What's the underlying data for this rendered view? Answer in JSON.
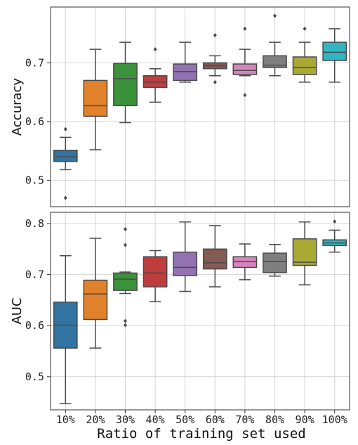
{
  "chart_data": {
    "type": "box",
    "categories": [
      "10%",
      "20%",
      "30%",
      "40%",
      "50%",
      "60%",
      "70%",
      "80%",
      "90%",
      "100%"
    ],
    "colors": [
      "#3274a1",
      "#e1812c",
      "#3a923a",
      "#c03d3e",
      "#9372b2",
      "#845b53",
      "#d684bd",
      "#7f7f7f",
      "#a9aa35",
      "#2eb7c2"
    ],
    "xlabel": "Ratio of training set used",
    "grid": true,
    "panels": [
      {
        "ylabel": "Accuracy",
        "ylim": [
          0.455,
          0.795
        ],
        "yticks": [
          0.5,
          0.6,
          0.7
        ],
        "ytick_labels": [
          "0.5",
          "0.6",
          "0.7"
        ],
        "boxes": [
          {
            "category": "10%",
            "whisker_low": 0.518,
            "q1": 0.532,
            "median": 0.54,
            "q3": 0.551,
            "whisker_high": 0.573,
            "outliers": [
              0.47,
              0.587
            ]
          },
          {
            "category": "20%",
            "whisker_low": 0.552,
            "q1": 0.609,
            "median": 0.627,
            "q3": 0.67,
            "whisker_high": 0.723,
            "outliers": []
          },
          {
            "category": "30%",
            "whisker_low": 0.598,
            "q1": 0.627,
            "median": 0.673,
            "q3": 0.699,
            "whisker_high": 0.735,
            "outliers": []
          },
          {
            "category": "40%",
            "whisker_low": 0.633,
            "q1": 0.658,
            "median": 0.667,
            "q3": 0.678,
            "whisker_high": 0.69,
            "outliers": [
              0.723
            ]
          },
          {
            "category": "50%",
            "whisker_low": 0.667,
            "q1": 0.67,
            "median": 0.685,
            "q3": 0.698,
            "whisker_high": 0.735,
            "outliers": []
          },
          {
            "category": "60%",
            "whisker_low": 0.678,
            "q1": 0.69,
            "median": 0.695,
            "q3": 0.7,
            "whisker_high": 0.712,
            "outliers": [
              0.667,
              0.747
            ]
          },
          {
            "category": "70%",
            "whisker_low": 0.678,
            "q1": 0.68,
            "median": 0.687,
            "q3": 0.698,
            "whisker_high": 0.723,
            "outliers": [
              0.645,
              0.758
            ]
          },
          {
            "category": "80%",
            "whisker_low": 0.678,
            "q1": 0.692,
            "median": 0.696,
            "q3": 0.712,
            "whisker_high": 0.735,
            "outliers": [
              0.78
            ]
          },
          {
            "category": "90%",
            "whisker_low": 0.667,
            "q1": 0.68,
            "median": 0.692,
            "q3": 0.71,
            "whisker_high": 0.735,
            "outliers": [
              0.758
            ]
          },
          {
            "category": "100%",
            "whisker_low": 0.667,
            "q1": 0.704,
            "median": 0.718,
            "q3": 0.735,
            "whisker_high": 0.758,
            "outliers": []
          }
        ]
      },
      {
        "ylabel": "AUC",
        "ylim": [
          0.435,
          0.822
        ],
        "yticks": [
          0.5,
          0.6,
          0.7,
          0.8
        ],
        "ytick_labels": [
          "0.5",
          "0.6",
          "0.7",
          "0.8"
        ],
        "boxes": [
          {
            "category": "10%",
            "whisker_low": 0.447,
            "q1": 0.556,
            "median": 0.601,
            "q3": 0.646,
            "whisker_high": 0.737,
            "outliers": []
          },
          {
            "category": "20%",
            "whisker_low": 0.556,
            "q1": 0.612,
            "median": 0.662,
            "q3": 0.689,
            "whisker_high": 0.771,
            "outliers": []
          },
          {
            "category": "30%",
            "whisker_low": 0.663,
            "q1": 0.669,
            "median": 0.691,
            "q3": 0.703,
            "whisker_high": 0.705,
            "outliers": [
              0.601,
              0.609,
              0.758,
              0.789
            ]
          },
          {
            "category": "40%",
            "whisker_low": 0.647,
            "q1": 0.676,
            "median": 0.703,
            "q3": 0.735,
            "whisker_high": 0.747,
            "outliers": []
          },
          {
            "category": "50%",
            "whisker_low": 0.667,
            "q1": 0.698,
            "median": 0.714,
            "q3": 0.744,
            "whisker_high": 0.803,
            "outliers": []
          },
          {
            "category": "60%",
            "whisker_low": 0.676,
            "q1": 0.711,
            "median": 0.723,
            "q3": 0.75,
            "whisker_high": 0.796,
            "outliers": []
          },
          {
            "category": "70%",
            "whisker_low": 0.69,
            "q1": 0.714,
            "median": 0.726,
            "q3": 0.735,
            "whisker_high": 0.76,
            "outliers": []
          },
          {
            "category": "80%",
            "whisker_low": 0.697,
            "q1": 0.704,
            "median": 0.726,
            "q3": 0.742,
            "whisker_high": 0.759,
            "outliers": []
          },
          {
            "category": "90%",
            "whisker_low": 0.68,
            "q1": 0.718,
            "median": 0.724,
            "q3": 0.77,
            "whisker_high": 0.803,
            "outliers": []
          },
          {
            "category": "100%",
            "whisker_low": 0.744,
            "q1": 0.757,
            "median": 0.762,
            "q3": 0.768,
            "whisker_high": 0.787,
            "outliers": [
              0.804
            ]
          }
        ]
      }
    ]
  }
}
